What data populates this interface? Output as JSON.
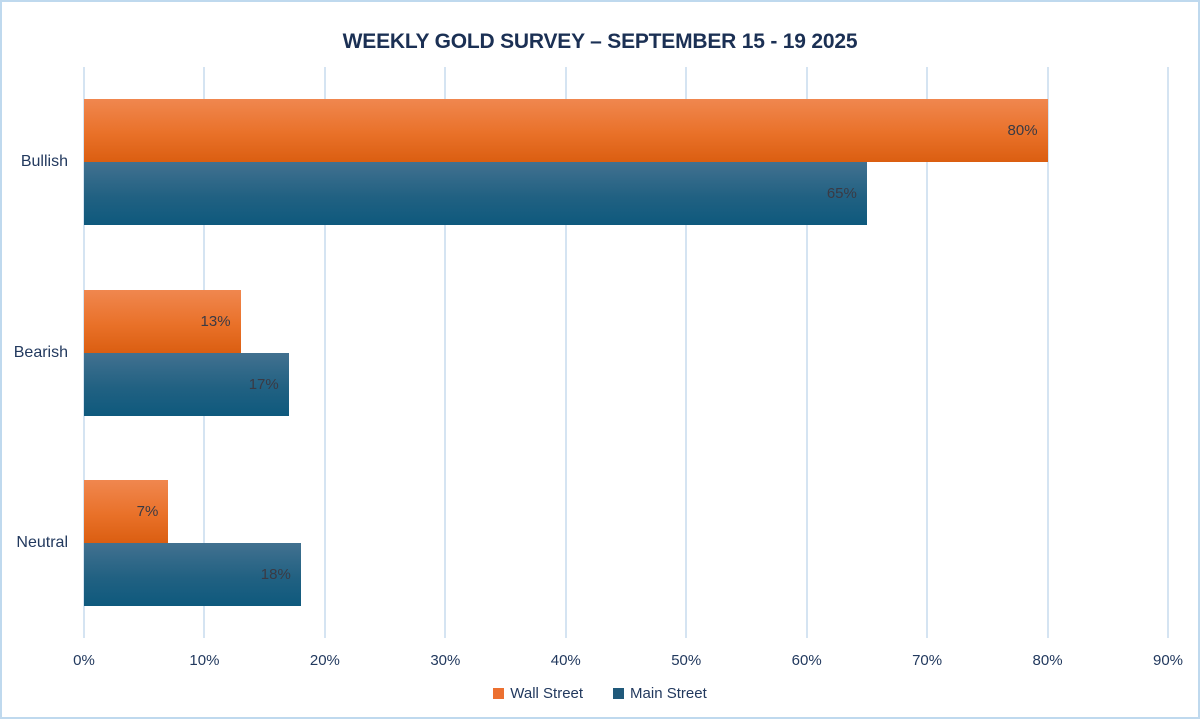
{
  "title": "WEEKLY GOLD SURVEY – SEPTEMBER 15  - 19 2025",
  "chart_data": {
    "type": "bar",
    "orientation": "horizontal",
    "title": "WEEKLY GOLD SURVEY – SEPTEMBER 15  - 19 2025",
    "categories": [
      "Bullish",
      "Bearish",
      "Neutral"
    ],
    "series": [
      {
        "name": "Wall Street",
        "values": [
          80,
          13,
          7
        ]
      },
      {
        "name": "Main Street",
        "values": [
          65,
          17,
          18
        ]
      }
    ],
    "data_labels": [
      [
        "80%",
        "13%",
        "7%"
      ],
      [
        "65%",
        "17%",
        "18%"
      ]
    ],
    "xlabel": "",
    "ylabel": "",
    "xlim": [
      0,
      90
    ],
    "x_ticks": [
      "0%",
      "10%",
      "20%",
      "30%",
      "40%",
      "50%",
      "60%",
      "70%",
      "80%",
      "90%"
    ],
    "grid": "vertical",
    "legend_position": "bottom"
  },
  "colors": {
    "wall_street": "#EC7030",
    "main_street": "#20597A",
    "wall_street_gradient_top": "#F0874F",
    "wall_street_gradient_bottom": "#DB5E11",
    "main_street_gradient_top": "#427190",
    "main_street_gradient_bottom": "#0E597D",
    "gridline": "#D5E4F2",
    "chart_border": "#BFD9EE",
    "title_text": "#1B3054",
    "axis_text": "#22395E",
    "data_label_text": "#3A3A44",
    "background": "#FFFFFF"
  }
}
